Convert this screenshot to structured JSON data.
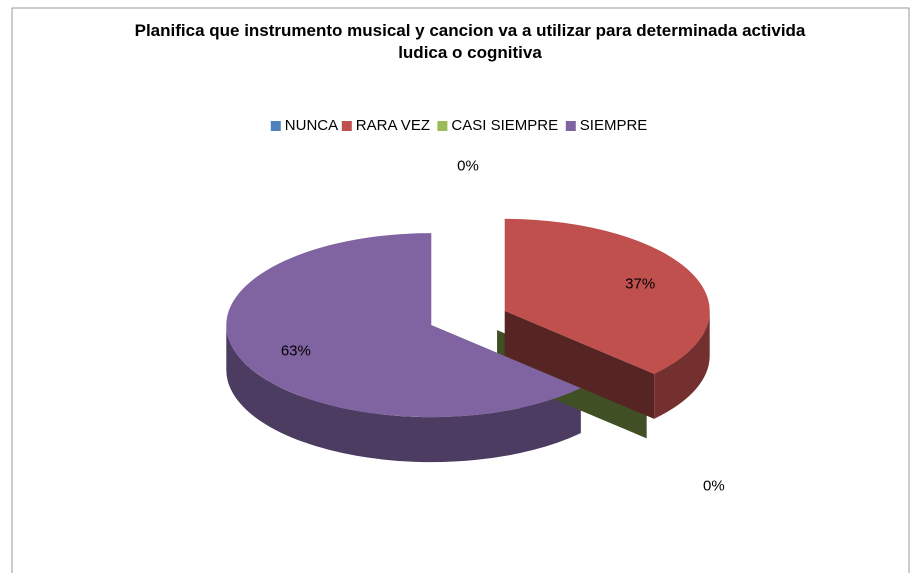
{
  "chart_data": {
    "type": "pie3d",
    "title": "Planifica que instrumento musical y cancion va a utilizar para determinada activida ludica o cognitiva",
    "categories": [
      "NUNCA",
      "RARA VEZ",
      "CASI SIEMPRE",
      "SIEMPRE"
    ],
    "values": [
      0,
      37,
      0,
      63
    ],
    "value_labels": [
      "0%",
      "37%",
      "0%",
      "63%"
    ],
    "colors": [
      "#4f81bd",
      "#c0504d",
      "#9bbb59",
      "#8064a2"
    ],
    "legend": "top"
  }
}
